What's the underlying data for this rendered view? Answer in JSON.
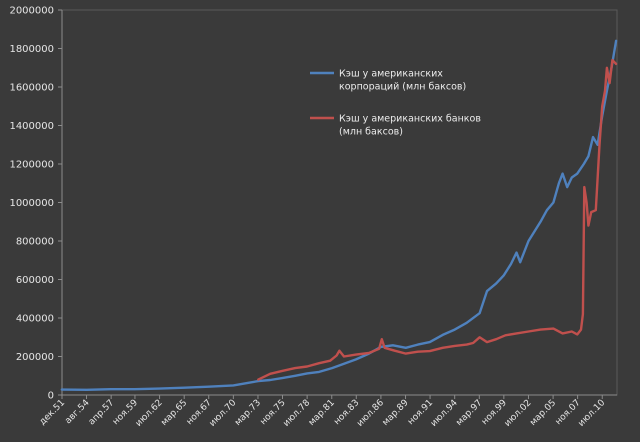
{
  "chart_data": {
    "type": "line",
    "title": "",
    "xlabel": "",
    "ylabel": "",
    "ylim": [
      0,
      2000000
    ],
    "y_ticks": [
      0,
      200000,
      400000,
      600000,
      800000,
      1000000,
      1200000,
      1400000,
      1600000,
      1800000,
      2000000
    ],
    "y_tick_labels": [
      "0",
      "200000",
      "400000",
      "600000",
      "800000",
      "1000000",
      "1200000",
      "1400000",
      "1600000",
      "1800000",
      "2000000"
    ],
    "x_tick_labels": [
      "дек.51",
      "авг.54",
      "апр.57",
      "ноя.59",
      "июл.62",
      "мар.65",
      "ноя.67",
      "июл.70",
      "мар.73",
      "ноя.75",
      "июл.78",
      "мар.81",
      "ноя.83",
      "июл.86",
      "мар.89",
      "ноя.91",
      "июл.94",
      "мар.97",
      "ноя.99",
      "июл.02",
      "мар.05",
      "ноя.07",
      "июл.10"
    ],
    "x_tick_years": [
      1951.92,
      1954.58,
      1957.25,
      1959.83,
      1962.5,
      1965.17,
      1967.83,
      1970.5,
      1973.17,
      1975.83,
      1978.5,
      1981.17,
      1983.83,
      1986.5,
      1989.17,
      1991.83,
      1994.5,
      1997.17,
      1999.83,
      2002.5,
      2005.17,
      2007.83,
      2010.5
    ],
    "xlim": [
      1951.92,
      2012.1
    ],
    "grid": false,
    "legend_position": "top-right",
    "series": [
      {
        "name": "Кэш у американских корпораций (млн баксов)",
        "color": "#4f81bd",
        "points": [
          [
            1951.9,
            28000
          ],
          [
            1954.6,
            27000
          ],
          [
            1957.2,
            30000
          ],
          [
            1959.8,
            30000
          ],
          [
            1962.5,
            33000
          ],
          [
            1965.2,
            38000
          ],
          [
            1967.8,
            43000
          ],
          [
            1970.5,
            50000
          ],
          [
            1973.2,
            72000
          ],
          [
            1974.5,
            78000
          ],
          [
            1975.8,
            88000
          ],
          [
            1977.2,
            100000
          ],
          [
            1978.5,
            112000
          ],
          [
            1979.8,
            120000
          ],
          [
            1981.2,
            140000
          ],
          [
            1982.5,
            162000
          ],
          [
            1983.8,
            185000
          ],
          [
            1985.2,
            215000
          ],
          [
            1986.5,
            250000
          ],
          [
            1987.8,
            258000
          ],
          [
            1989.2,
            245000
          ],
          [
            1990.5,
            262000
          ],
          [
            1991.8,
            275000
          ],
          [
            1993.2,
            312000
          ],
          [
            1994.5,
            340000
          ],
          [
            1995.8,
            375000
          ],
          [
            1997.2,
            425000
          ],
          [
            1998.0,
            540000
          ],
          [
            1999.0,
            580000
          ],
          [
            1999.8,
            620000
          ],
          [
            2000.6,
            680000
          ],
          [
            2001.2,
            740000
          ],
          [
            2001.6,
            690000
          ],
          [
            2002.5,
            800000
          ],
          [
            2003.8,
            900000
          ],
          [
            2004.5,
            960000
          ],
          [
            2005.2,
            1000000
          ],
          [
            2005.8,
            1100000
          ],
          [
            2006.2,
            1150000
          ],
          [
            2006.7,
            1080000
          ],
          [
            2007.2,
            1130000
          ],
          [
            2007.8,
            1150000
          ],
          [
            2008.5,
            1200000
          ],
          [
            2009.0,
            1240000
          ],
          [
            2009.5,
            1340000
          ],
          [
            2010.0,
            1300000
          ],
          [
            2010.5,
            1450000
          ],
          [
            2011.0,
            1580000
          ],
          [
            2011.5,
            1700000
          ],
          [
            2012.0,
            1840000
          ]
        ]
      },
      {
        "name": "Кэш у американских банков (млн баксов)",
        "color": "#c0504d",
        "points": [
          [
            1973.2,
            80000
          ],
          [
            1974.5,
            110000
          ],
          [
            1975.8,
            125000
          ],
          [
            1977.2,
            140000
          ],
          [
            1978.5,
            148000
          ],
          [
            1979.8,
            165000
          ],
          [
            1981.0,
            178000
          ],
          [
            1981.7,
            205000
          ],
          [
            1982.0,
            230000
          ],
          [
            1982.5,
            200000
          ],
          [
            1983.8,
            210000
          ],
          [
            1985.2,
            218000
          ],
          [
            1986.3,
            240000
          ],
          [
            1986.6,
            290000
          ],
          [
            1986.9,
            245000
          ],
          [
            1988.0,
            230000
          ],
          [
            1989.2,
            215000
          ],
          [
            1990.5,
            225000
          ],
          [
            1991.8,
            228000
          ],
          [
            1993.2,
            245000
          ],
          [
            1994.5,
            255000
          ],
          [
            1995.8,
            262000
          ],
          [
            1996.5,
            270000
          ],
          [
            1997.2,
            300000
          ],
          [
            1998.0,
            275000
          ],
          [
            1999.0,
            290000
          ],
          [
            2000.0,
            310000
          ],
          [
            2001.2,
            320000
          ],
          [
            2002.5,
            330000
          ],
          [
            2003.8,
            340000
          ],
          [
            2005.2,
            345000
          ],
          [
            2006.2,
            320000
          ],
          [
            2007.2,
            330000
          ],
          [
            2007.8,
            315000
          ],
          [
            2008.2,
            340000
          ],
          [
            2008.4,
            420000
          ],
          [
            2008.55,
            1080000
          ],
          [
            2008.8,
            1000000
          ],
          [
            2009.0,
            880000
          ],
          [
            2009.3,
            950000
          ],
          [
            2009.8,
            960000
          ],
          [
            2010.2,
            1300000
          ],
          [
            2010.5,
            1500000
          ],
          [
            2010.8,
            1580000
          ],
          [
            2011.0,
            1700000
          ],
          [
            2011.3,
            1620000
          ],
          [
            2011.6,
            1740000
          ],
          [
            2012.0,
            1720000
          ]
        ]
      }
    ]
  }
}
